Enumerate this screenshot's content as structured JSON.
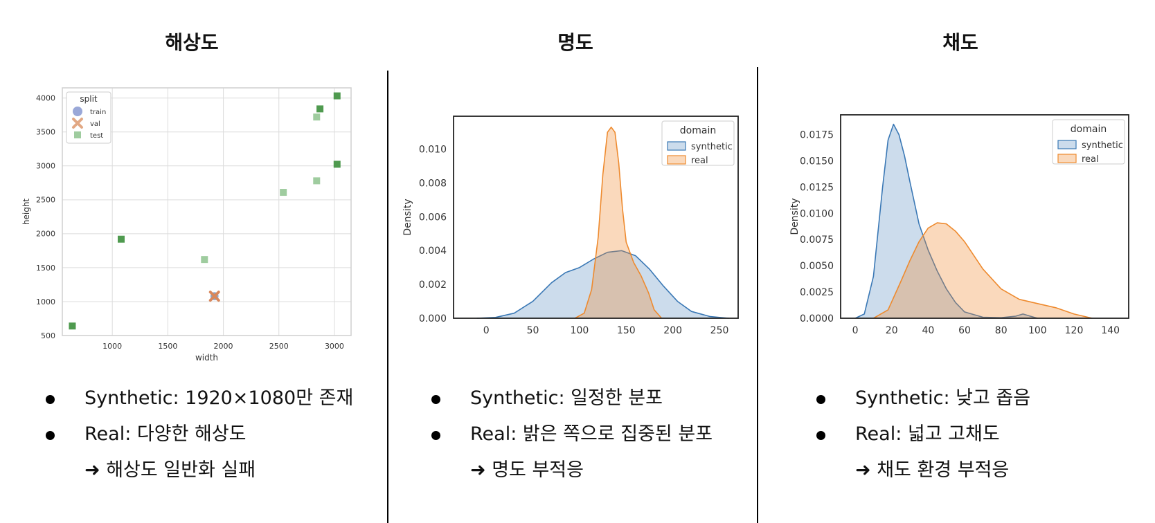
{
  "columns": [
    {
      "title": "해상도",
      "bullets": [
        "Synthetic: 1920×1080만 존재",
        "Real: 다양한 해상도"
      ],
      "conclusion": "➜ 해상도 일반화 실패"
    },
    {
      "title": "명도",
      "bullets": [
        "Synthetic: 일정한 분포",
        "Real: 밝은 쪽으로 집중된 분포"
      ],
      "conclusion": "➜  명도 부적응"
    },
    {
      "title": "채도",
      "bullets": [
        "Synthetic: 낮고 좁음",
        "Real: 넓고 고채도"
      ],
      "conclusion": "➜ 채도 환경 부적응"
    }
  ],
  "colors": {
    "synthetic": "#3a78b5",
    "real": "#ee8a2e",
    "train": "#9aa8d8",
    "val": "#e2a884",
    "test": "#9fcc9f",
    "test_dark": "#4f9a4f"
  },
  "chart_data": [
    {
      "type": "scatter",
      "xlabel": "width",
      "ylabel": "height",
      "xlim": [
        550,
        3150
      ],
      "ylim": [
        500,
        4150
      ],
      "xticks": [
        1000,
        1500,
        2000,
        2500,
        3000
      ],
      "yticks": [
        500,
        1000,
        1500,
        2000,
        2500,
        3000,
        3500,
        4000
      ],
      "grid": true,
      "legend": {
        "title": "split",
        "position": "top-left",
        "entries": [
          "train",
          "val",
          "test"
        ]
      },
      "series": [
        {
          "name": "train",
          "marker": "circle",
          "points": [
            [
              1920,
              1080
            ]
          ]
        },
        {
          "name": "val",
          "marker": "x",
          "points": [
            [
              1920,
              1080
            ]
          ]
        },
        {
          "name": "test",
          "marker": "square",
          "points": [
            [
              640,
              640
            ],
            [
              1080,
              1920
            ],
            [
              1830,
              1620
            ],
            [
              1920,
              1080
            ],
            [
              2540,
              2610
            ],
            [
              2840,
              2780
            ],
            [
              2840,
              3720
            ],
            [
              2870,
              3840
            ],
            [
              3024,
              3024
            ],
            [
              3024,
              4032
            ]
          ]
        }
      ]
    },
    {
      "type": "area",
      "xlabel": "",
      "ylabel": "Density",
      "xlim": [
        -35,
        270
      ],
      "ylim": [
        0,
        0.01195
      ],
      "xticks": [
        0,
        50,
        100,
        150,
        200,
        250
      ],
      "yticks": [
        0.0,
        0.002,
        0.004,
        0.006,
        0.008,
        0.01
      ],
      "ytick_labels": [
        "0.000",
        "0.002",
        "0.004",
        "0.006",
        "0.008",
        "0.010"
      ],
      "grid": false,
      "legend": {
        "title": "domain",
        "position": "top-right",
        "entries": [
          "synthetic",
          "real"
        ]
      },
      "series": [
        {
          "name": "synthetic",
          "x": [
            -10,
            10,
            30,
            50,
            70,
            85,
            100,
            115,
            130,
            145,
            160,
            175,
            190,
            205,
            220,
            240,
            260
          ],
          "values": [
            0,
            5e-05,
            0.0003,
            0.001,
            0.0021,
            0.0027,
            0.003,
            0.0035,
            0.0039,
            0.004,
            0.0037,
            0.0029,
            0.0019,
            0.001,
            0.0004,
            0.0001,
            0
          ]
        },
        {
          "name": "real",
          "x": [
            95,
            105,
            113,
            120,
            125,
            130,
            134,
            138,
            142,
            146,
            150,
            158,
            166,
            174,
            180,
            188
          ],
          "values": [
            0,
            0.0003,
            0.0017,
            0.0048,
            0.0085,
            0.011,
            0.0113,
            0.011,
            0.0092,
            0.0065,
            0.0045,
            0.0033,
            0.0025,
            0.0015,
            0.0005,
            0
          ]
        }
      ]
    },
    {
      "type": "area",
      "xlabel": "",
      "ylabel": "Density",
      "xlim": [
        -8,
        150
      ],
      "ylim": [
        0,
        0.0194
      ],
      "xticks": [
        0,
        20,
        40,
        60,
        80,
        100,
        120,
        140
      ],
      "yticks": [
        0.0,
        0.0025,
        0.005,
        0.0075,
        0.01,
        0.0125,
        0.015,
        0.0175
      ],
      "ytick_labels": [
        "0.0000",
        "0.0025",
        "0.0050",
        "0.0075",
        "0.0100",
        "0.0125",
        "0.0150",
        "0.0175"
      ],
      "grid": false,
      "legend": {
        "title": "domain",
        "position": "top-right",
        "entries": [
          "synthetic",
          "real"
        ]
      },
      "series": [
        {
          "name": "synthetic",
          "x": [
            0,
            5,
            10,
            15,
            18,
            21,
            24,
            27,
            30,
            35,
            40,
            45,
            50,
            55,
            60,
            70,
            80,
            88,
            92,
            96,
            100
          ],
          "values": [
            0,
            0.0004,
            0.004,
            0.0125,
            0.017,
            0.0185,
            0.0175,
            0.0155,
            0.013,
            0.009,
            0.0065,
            0.0045,
            0.0028,
            0.0015,
            0.0006,
            0.0001,
            5e-05,
            0.0002,
            0.0004,
            0.0002,
            0
          ]
        },
        {
          "name": "real",
          "x": [
            10,
            18,
            25,
            30,
            35,
            40,
            45,
            50,
            55,
            60,
            65,
            70,
            80,
            90,
            100,
            110,
            120,
            130
          ],
          "values": [
            0,
            0.0008,
            0.0035,
            0.0055,
            0.0073,
            0.0086,
            0.0091,
            0.009,
            0.0083,
            0.0073,
            0.006,
            0.0047,
            0.0028,
            0.0018,
            0.0014,
            0.001,
            0.0004,
            0
          ]
        }
      ]
    }
  ]
}
